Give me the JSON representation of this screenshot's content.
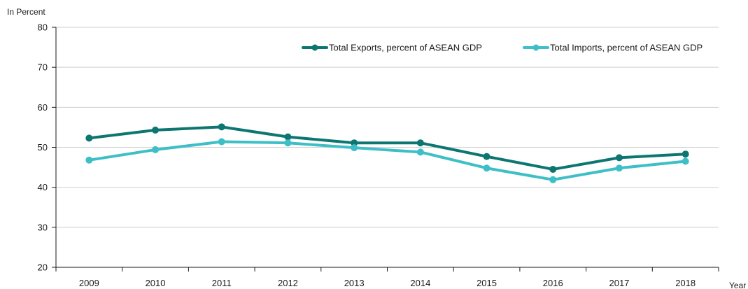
{
  "chart_data": {
    "type": "line",
    "title": "",
    "ylabel": "In Percent",
    "xlabel": "Year",
    "ylim": [
      20,
      80
    ],
    "yticks": [
      20,
      30,
      40,
      50,
      60,
      70,
      80
    ],
    "grid": true,
    "legend_position": "top-right",
    "categories": [
      "2009",
      "2010",
      "2011",
      "2012",
      "2013",
      "2014",
      "2015",
      "2016",
      "2017",
      "2018"
    ],
    "series": [
      {
        "name": "Total Exports, percent of ASEAN GDP",
        "color": "#0d7671",
        "values": [
          52.3,
          54.3,
          55.1,
          52.6,
          51.1,
          51.1,
          47.7,
          44.5,
          47.4,
          48.3
        ]
      },
      {
        "name": "Total Imports, percent of ASEAN GDP",
        "color": "#3ebfc7",
        "values": [
          46.8,
          49.4,
          51.4,
          51.1,
          49.9,
          48.8,
          44.8,
          41.9,
          44.8,
          46.5
        ]
      }
    ]
  }
}
